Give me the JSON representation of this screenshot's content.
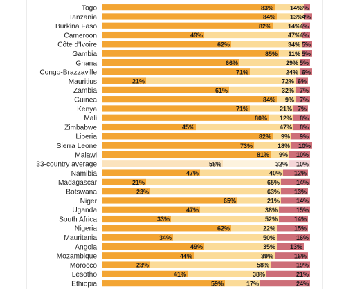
{
  "chart_data": {
    "type": "bar",
    "stacked": true,
    "orientation": "horizontal",
    "xlim": [
      0,
      100
    ],
    "categories": [
      "Togo",
      "Tanzania",
      "Burkina Faso",
      "Cameroon",
      "Côte d'Ivoire",
      "Gambia",
      "Ghana",
      "Congo-Brazzaville",
      "Mauritius",
      "Zambia",
      "Guinea",
      "Kenya",
      "Mali",
      "Zimbabwe",
      "Liberia",
      "Sierra Leone",
      "Malawi",
      "33-country average",
      "Namibia",
      "Madagascar",
      "Botswana",
      "Niger",
      "Uganda",
      "South Africa",
      "Nigeria",
      "Mauritania",
      "Angola",
      "Mozambique",
      "Morocco",
      "Lesotho",
      "Ethiopia"
    ],
    "series": [
      {
        "values": [
          83,
          84,
          82,
          49,
          62,
          85,
          66,
          71,
          21,
          61,
          84,
          71,
          80,
          45,
          82,
          73,
          81,
          58,
          47,
          21,
          23,
          65,
          47,
          33,
          62,
          34,
          49,
          44,
          23,
          41,
          59
        ]
      },
      {
        "values": [
          14,
          13,
          14,
          47,
          34,
          11,
          29,
          24,
          72,
          32,
          9,
          21,
          12,
          47,
          9,
          18,
          9,
          32,
          40,
          65,
          63,
          21,
          38,
          52,
          22,
          50,
          35,
          39,
          58,
          38,
          17
        ]
      },
      {
        "values": [
          3,
          4,
          4,
          4,
          5,
          5,
          5,
          6,
          6,
          7,
          7,
          7,
          8,
          8,
          9,
          10,
          10,
          10,
          12,
          14,
          13,
          14,
          15,
          14,
          15,
          16,
          13,
          16,
          19,
          21,
          24
        ]
      }
    ],
    "colors": {
      "s1": "#f3a533",
      "s2": "#fbdb98",
      "s3": "#cd6e78",
      "s1_avg": "#fbe3bd",
      "s2_avg": "#fdf3de",
      "s3_avg": "#f4d5d8"
    },
    "highlight_category": "33-country average",
    "label_format": "percent"
  }
}
